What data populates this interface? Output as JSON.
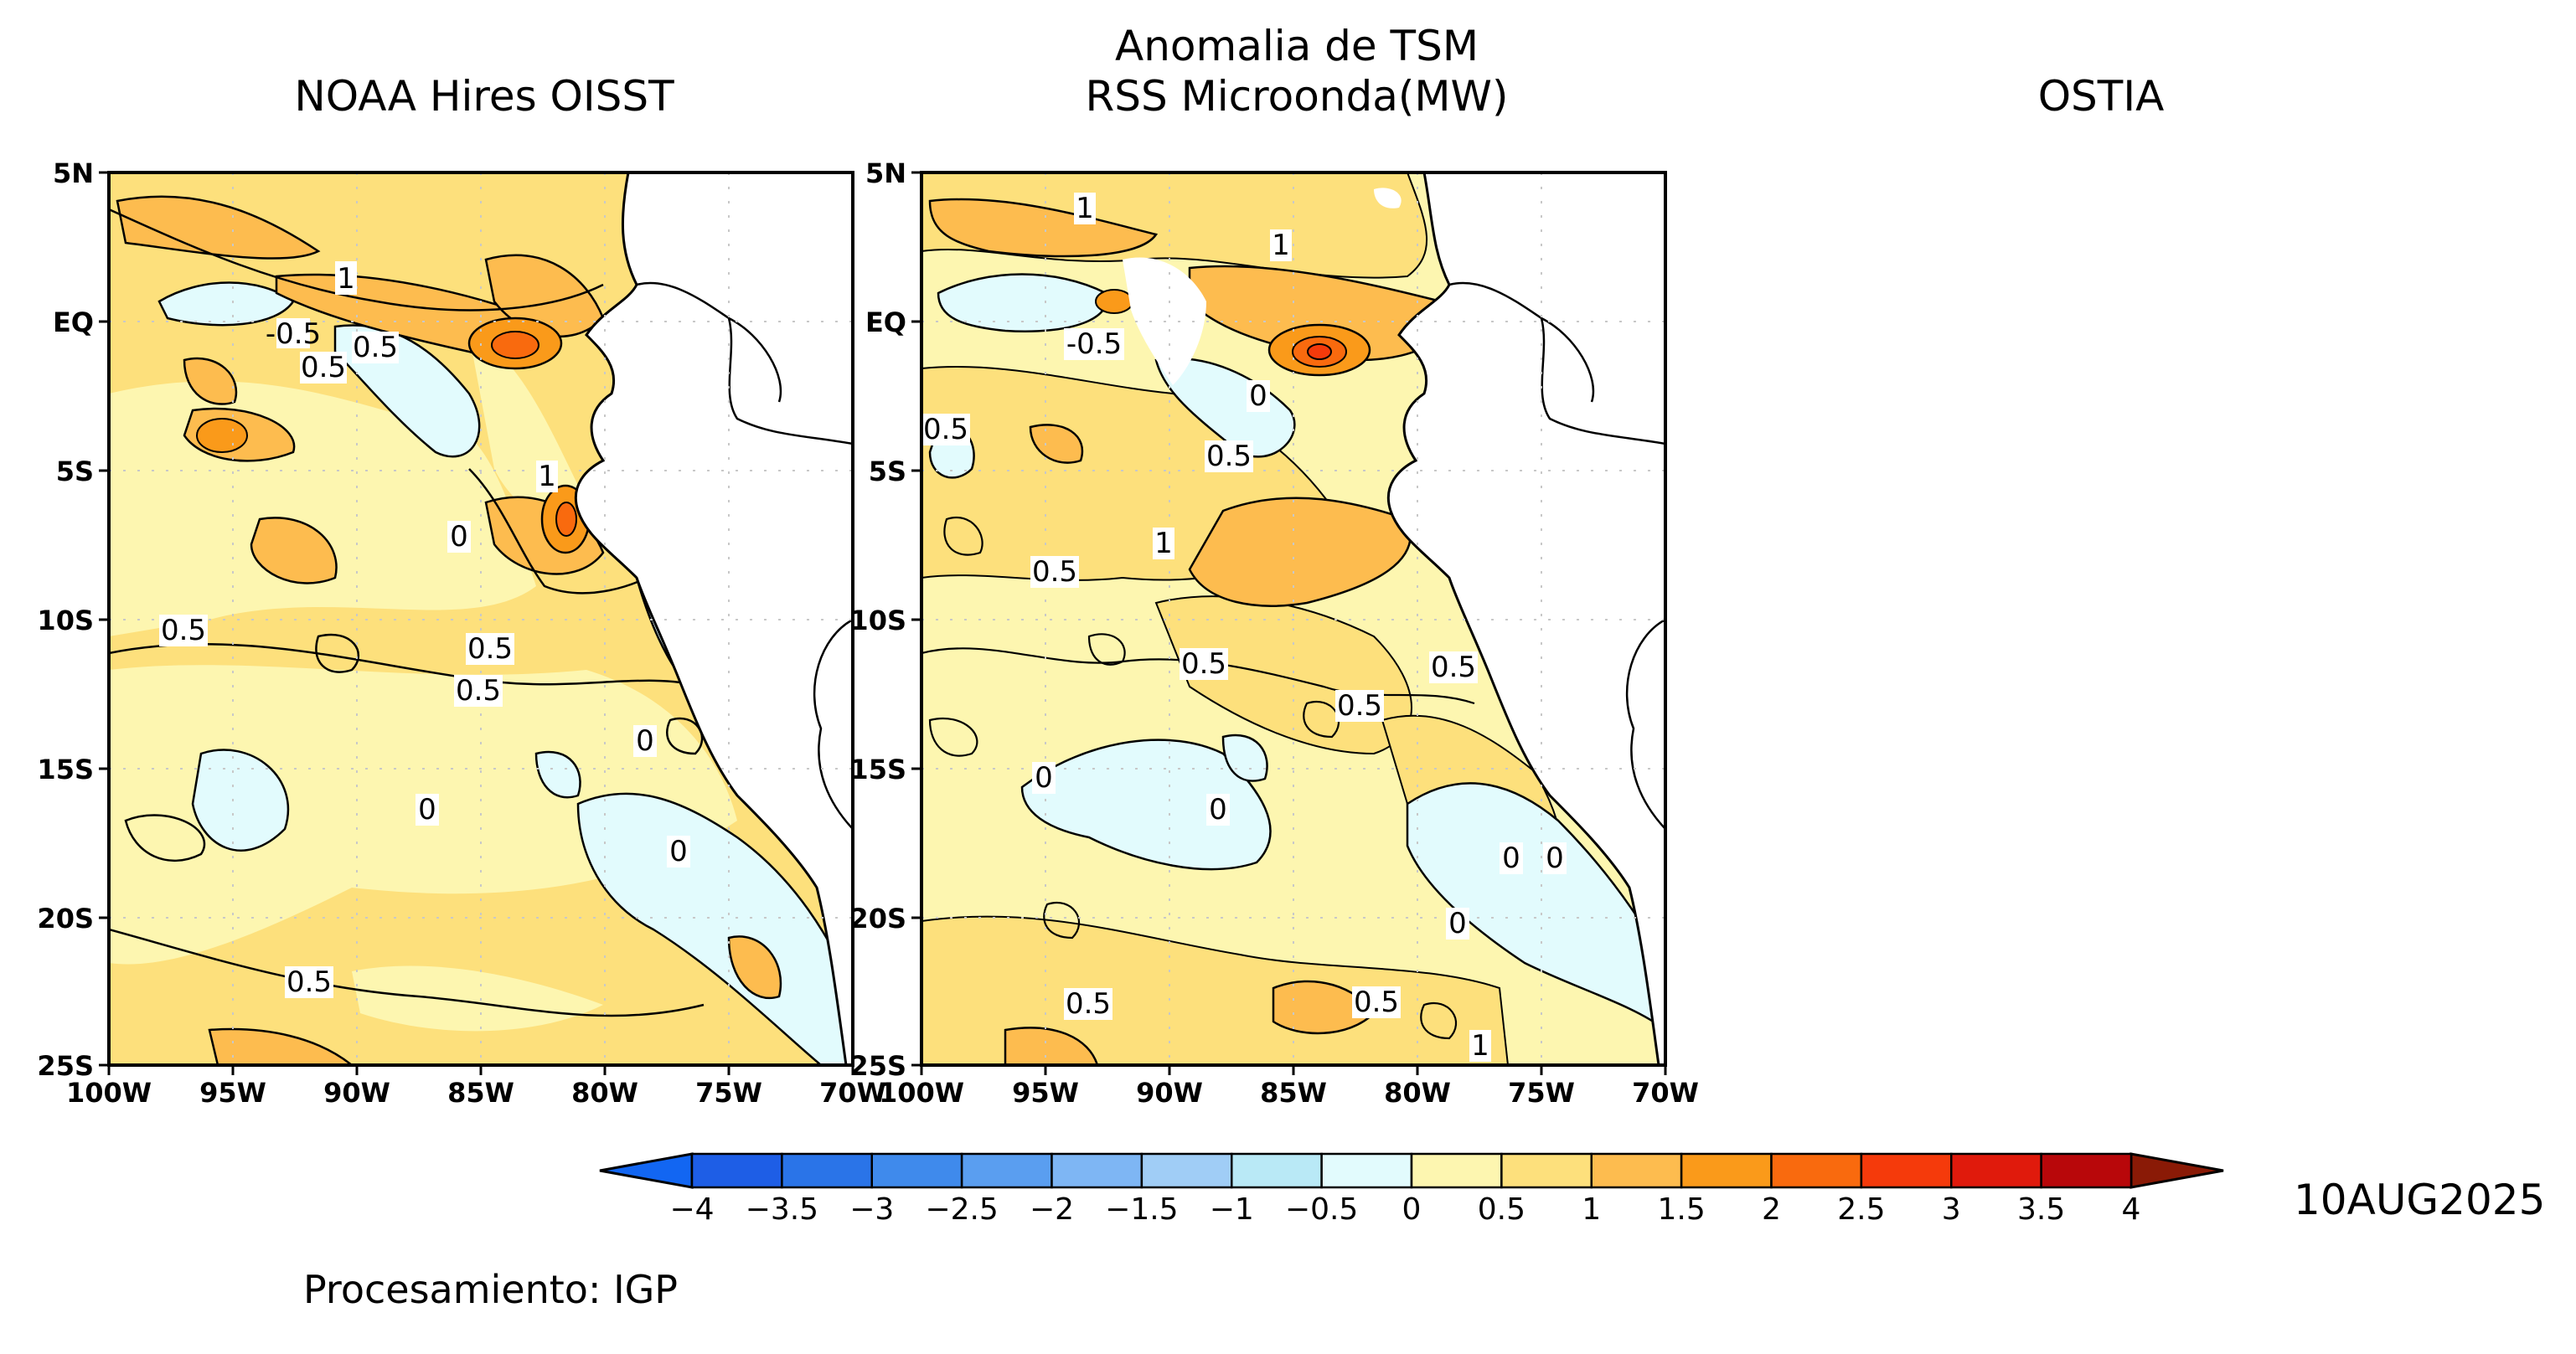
{
  "titles": {
    "left": "NOAA Hires OISST",
    "center_line1": "Anomalia de TSM",
    "center_line2": "RSS Microonda(MW)",
    "right": "OSTIA"
  },
  "axes": {
    "lon_ticks": [
      "100W",
      "95W",
      "90W",
      "85W",
      "80W",
      "75W",
      "70W"
    ],
    "lat_ticks": [
      "5N",
      "EQ",
      "5S",
      "10S",
      "15S",
      "20S",
      "25S"
    ],
    "lon_range": [
      -100,
      -70
    ],
    "lat_range": [
      -25,
      5
    ]
  },
  "colorbar": {
    "levels": [
      "−4",
      "−3.5",
      "−3",
      "−2.5",
      "−2",
      "−1.5",
      "−1",
      "−0.5",
      "0",
      "0.5",
      "1",
      "1.5",
      "2",
      "2.5",
      "3",
      "3.5",
      "4"
    ],
    "colors": [
      "#1e5ee6",
      "#2a74e8",
      "#3f8aec",
      "#5a9ef0",
      "#7eb6f4",
      "#a0cdf6",
      "#b9e9f6",
      "#e2fbfd",
      "#fdf6b0",
      "#fde07c",
      "#fdbc4f",
      "#fa9a1a",
      "#f96a0e",
      "#f53a0b",
      "#e01a0c",
      "#b8070a"
    ],
    "under_color": "#1266f2",
    "over_color": "#8a1a06"
  },
  "date": "10AUG2025",
  "credit": "Procesamiento: IGP",
  "panel_left": {
    "contour_labels": [
      "1",
      "0.5",
      "0.5",
      "-0.5",
      "0",
      "1",
      "0.5",
      "0.5",
      "0.5",
      "0",
      "0",
      "0",
      "0.5"
    ]
  },
  "panel_right": {
    "contour_labels": [
      "1",
      "1",
      "-0.5",
      "0",
      "0.5",
      "0.5",
      "1",
      "0.5",
      "0.5",
      "0.5",
      "0.5",
      "0",
      "0",
      "0",
      "0",
      "0",
      "0.5",
      "1",
      "0.5"
    ]
  },
  "colors": {
    "land": "#ffffff",
    "coast": "#000000",
    "frame": "#000000"
  }
}
